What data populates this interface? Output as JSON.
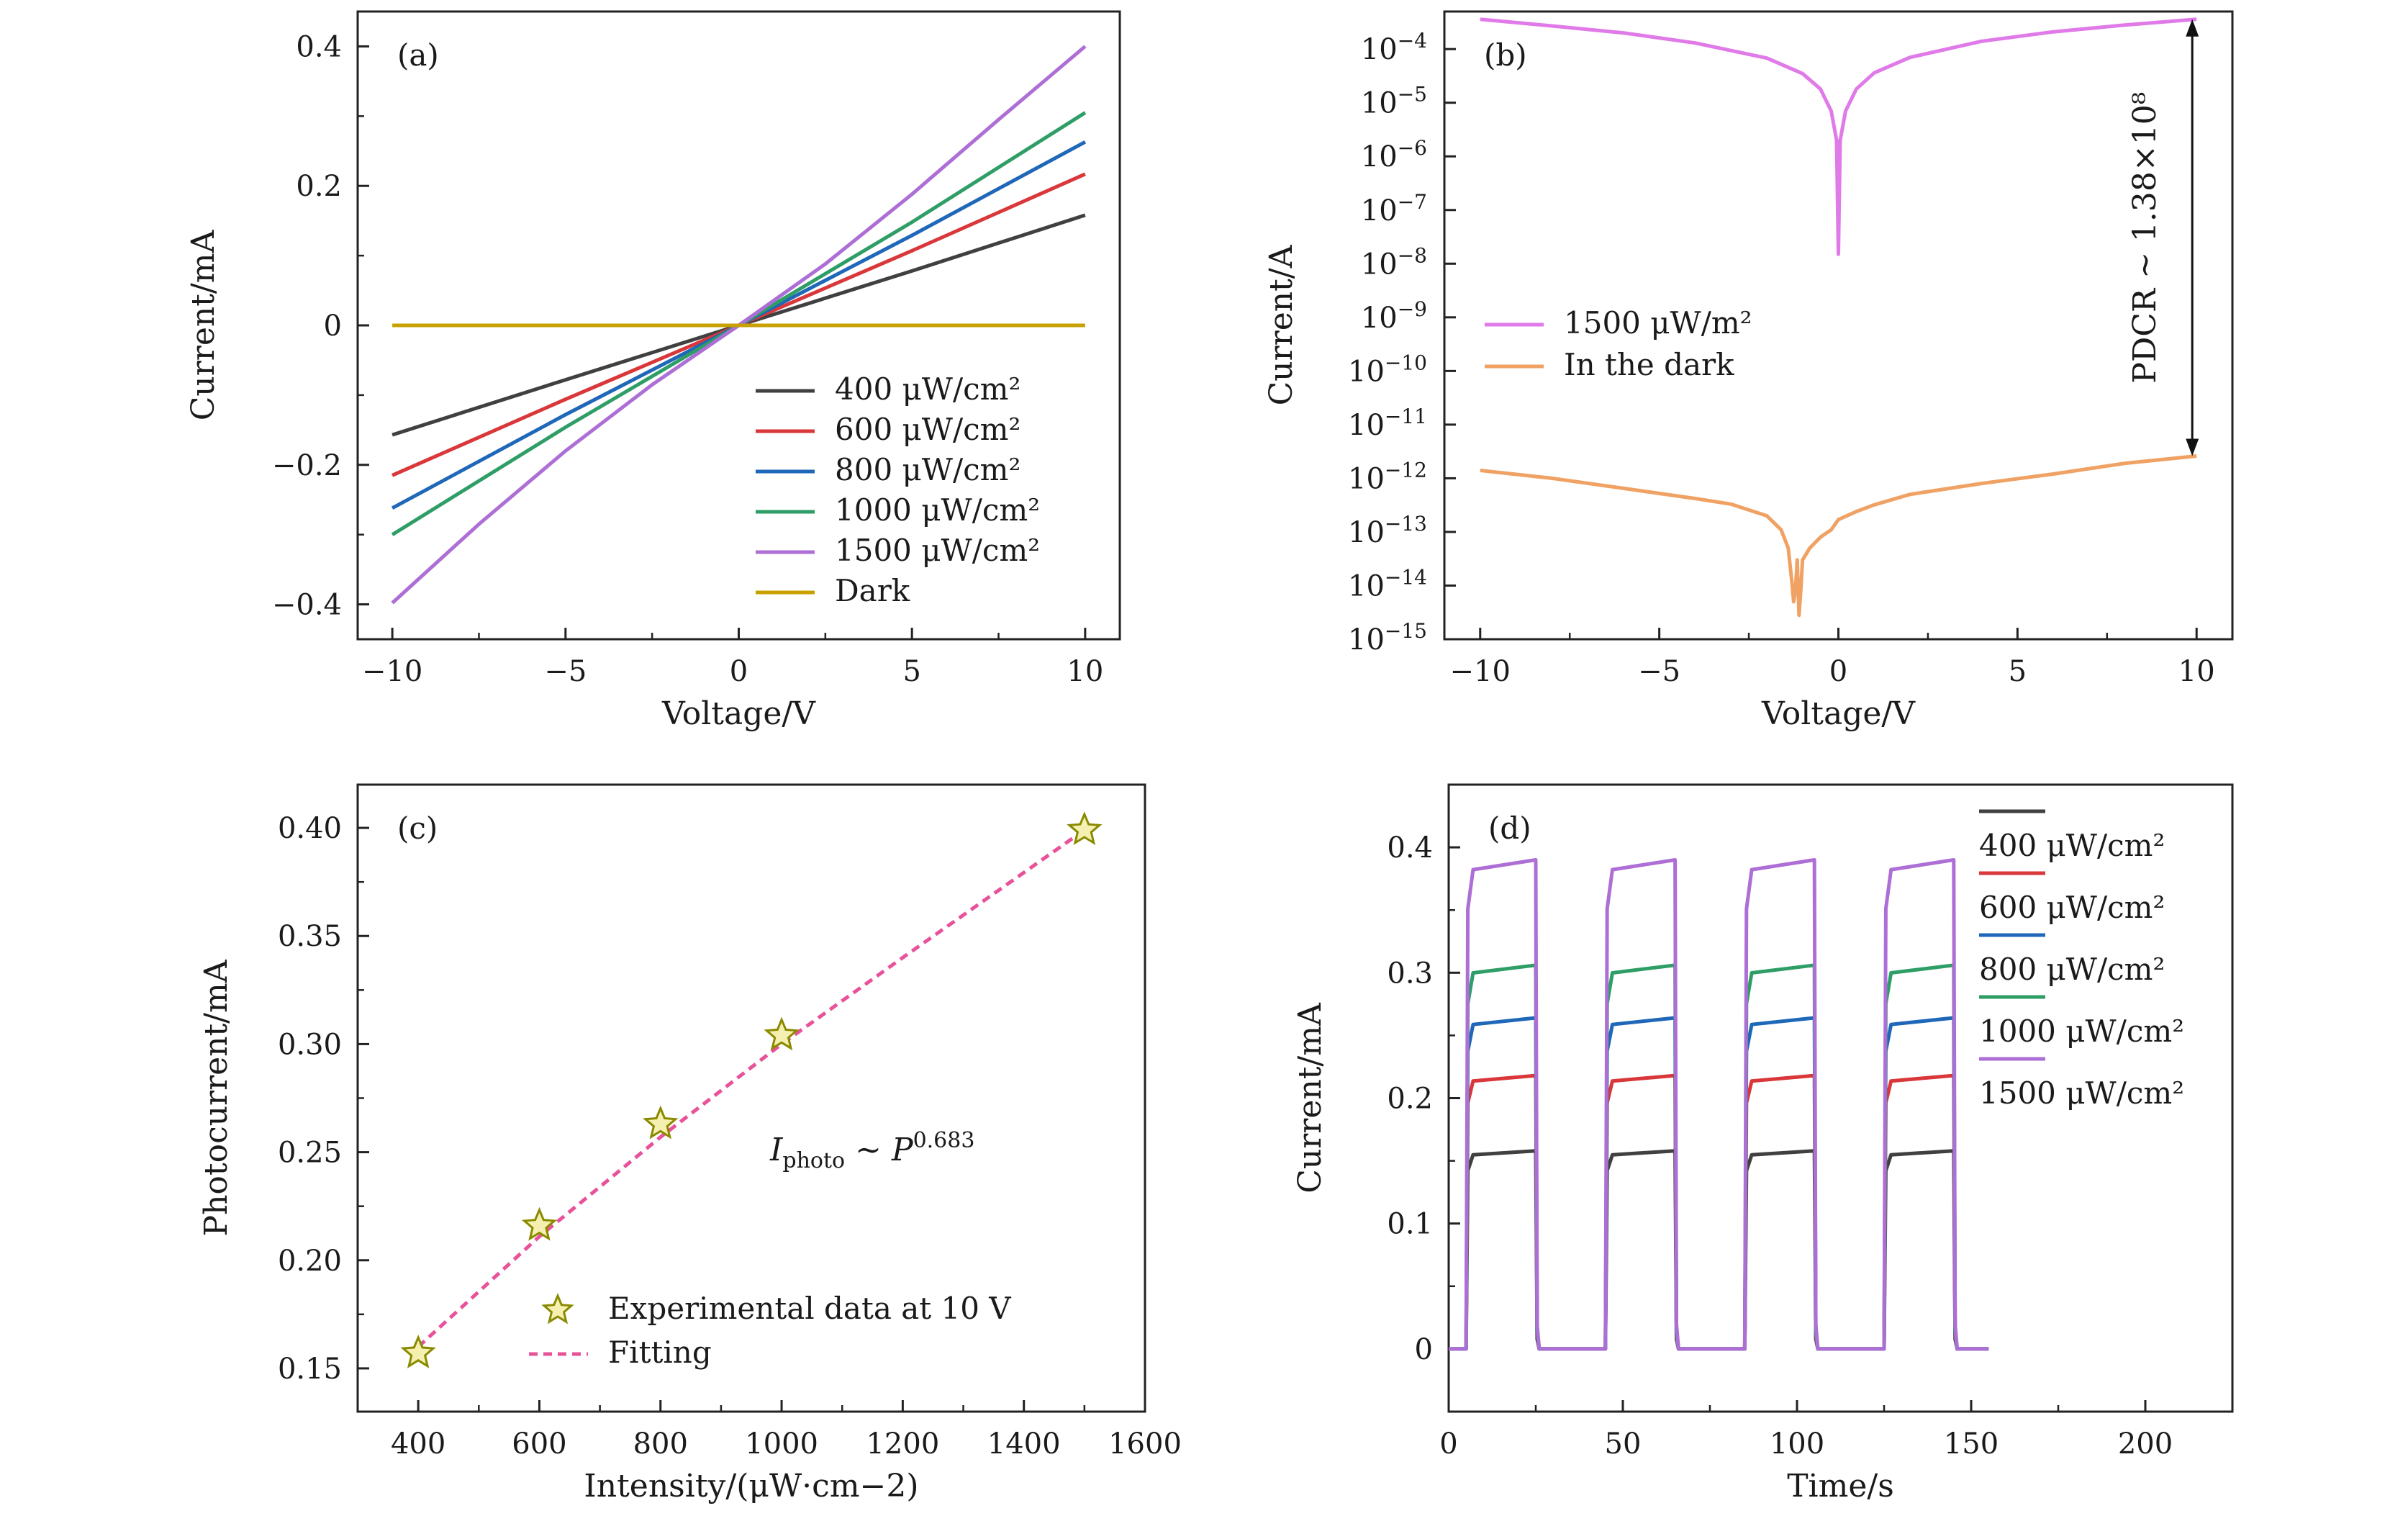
{
  "chart_data": [
    {
      "panel": "(a)",
      "type": "line",
      "xlabel": "Voltage/V",
      "ylabel": "Current/mA",
      "xlim": [
        -11,
        11
      ],
      "ylim": [
        -0.45,
        0.45
      ],
      "xticks": [
        -10,
        -5,
        0,
        5,
        10
      ],
      "xtick_labels": [
        "−10",
        "−5",
        "0",
        "5",
        "10"
      ],
      "yticks": [
        -0.4,
        -0.2,
        0,
        0.2,
        0.4
      ],
      "ytick_labels": [
        "−0.4",
        "−0.2",
        "0",
        "0.2",
        "0.4"
      ],
      "grid": false,
      "legend_position": "bottom-right",
      "series": [
        {
          "name": "400 μW/cm²",
          "color": "#404040",
          "x": [
            -10,
            -5,
            0,
            5,
            10
          ],
          "values": [
            -0.157,
            -0.078,
            0,
            0.078,
            0.158
          ]
        },
        {
          "name": "600 μW/cm²",
          "color": "#d9373a",
          "x": [
            -10,
            -5,
            0,
            5,
            10
          ],
          "values": [
            -0.215,
            -0.106,
            0,
            0.107,
            0.217
          ]
        },
        {
          "name": "800 μW/cm²",
          "color": "#1f67b8",
          "x": [
            -10,
            -5,
            0,
            5,
            10
          ],
          "values": [
            -0.262,
            -0.128,
            0,
            0.129,
            0.263
          ]
        },
        {
          "name": "1000 μW/cm²",
          "color": "#2e9e66",
          "x": [
            -10,
            -5,
            0,
            5,
            10
          ],
          "values": [
            -0.3,
            -0.146,
            0,
            0.148,
            0.305
          ]
        },
        {
          "name": "1500 μW/cm²",
          "color": "#ad6fd6",
          "x": [
            -10,
            -7.5,
            -5,
            -2.5,
            0,
            2.5,
            5,
            7.5,
            10
          ],
          "values": [
            -0.398,
            -0.285,
            -0.18,
            -0.085,
            0,
            0.088,
            0.188,
            0.295,
            0.4
          ]
        },
        {
          "name": "Dark",
          "color": "#c8a000",
          "x": [
            -10,
            0,
            10
          ],
          "values": [
            0,
            0,
            0
          ]
        }
      ]
    },
    {
      "panel": "(b)",
      "type": "line",
      "xlabel": "Voltage/V",
      "ylabel": "Current/A",
      "xlim": [
        -11,
        11
      ],
      "ylim_log10": [
        -15,
        -3.3
      ],
      "yscale": "log",
      "xticks": [
        -10,
        -5,
        0,
        5,
        10
      ],
      "xtick_labels": [
        "−10",
        "−5",
        "0",
        "5",
        "10"
      ],
      "ytick_exponents": [
        -15,
        -14,
        -13,
        -12,
        -11,
        -10,
        -9,
        -8,
        -7,
        -6,
        -5,
        -4
      ],
      "ytick_labels": [
        "10−15",
        "10−14",
        "10−13",
        "10−12",
        "10−11",
        "10−10",
        "10−9",
        "10−8",
        "10−7",
        "10−6",
        "10−5",
        "10−4"
      ],
      "grid": false,
      "legend_position": "middle-left",
      "annotation": "PDCR ~ 1.38×10⁸",
      "series": [
        {
          "name": "1500 μW/m²",
          "color": "#e07ae8",
          "x": [
            -10,
            -8,
            -6,
            -4,
            -2,
            -1,
            -0.5,
            -0.2,
            -0.05,
            0,
            0.05,
            0.2,
            0.5,
            1,
            2,
            4,
            6,
            8,
            10
          ],
          "values": [
            0.00036,
            0.00027,
            0.0002,
            0.00013,
            6.8e-05,
            3.5e-05,
            1.8e-05,
            7e-06,
            2e-06,
            1.5e-08,
            2e-06,
            7e-06,
            1.8e-05,
            3.6e-05,
            7e-05,
            0.00014,
            0.00021,
            0.00028,
            0.00036
          ]
        },
        {
          "name": "In the dark",
          "color": "#f0a264",
          "x": [
            -10,
            -8,
            -6,
            -4,
            -3,
            -2,
            -1.6,
            -1.4,
            -1.3,
            -1.25,
            -1.2,
            -1.15,
            -1.1,
            -1.05,
            -1.0,
            -0.8,
            -0.5,
            -0.2,
            0,
            0.5,
            1,
            2,
            4,
            6,
            8,
            10
          ],
          "values": [
            1.4e-12,
            1e-12,
            6.5e-13,
            4.2e-13,
            3.3e-13,
            2e-13,
            1.1e-13,
            5e-14,
            1.2e-14,
            5e-15,
            8e-15,
            3e-14,
            2.8e-15,
            8e-15,
            3e-14,
            5e-14,
            8e-14,
            1.1e-13,
            1.7e-13,
            2.4e-13,
            3.2e-13,
            5e-13,
            8e-13,
            1.2e-12,
            1.9e-12,
            2.6e-12
          ]
        }
      ]
    },
    {
      "panel": "(c)",
      "type": "scatter",
      "xlabel": "Intensity/(μW·cm−2)",
      "ylabel": "Photocurrent/mA",
      "xlim": [
        300,
        1600
      ],
      "ylim": [
        0.13,
        0.42
      ],
      "xticks": [
        400,
        600,
        800,
        1000,
        1200,
        1400,
        1600
      ],
      "xtick_labels": [
        "400",
        "600",
        "800",
        "1000",
        "1200",
        "1400",
        "1600"
      ],
      "yticks": [
        0.15,
        0.2,
        0.25,
        0.3,
        0.35,
        0.4
      ],
      "ytick_labels": [
        "0.15",
        "0.20",
        "0.25",
        "0.30",
        "0.35",
        "0.40"
      ],
      "grid": false,
      "legend_position": "bottom-right",
      "annotation": "Iphoto ~ P0.683",
      "series": [
        {
          "name": "Experimental data at 10 V",
          "color": "#8a8a00",
          "x": [
            400,
            600,
            800,
            1000,
            1500
          ],
          "values": [
            0.157,
            0.216,
            0.263,
            0.304,
            0.399
          ]
        },
        {
          "name": "Fitting",
          "color": "#e8529a",
          "x": [
            400,
            600,
            800,
            1000,
            1200,
            1500
          ],
          "values": [
            0.16,
            0.211,
            0.257,
            0.3,
            0.34,
            0.399
          ]
        }
      ]
    },
    {
      "panel": "(d)",
      "type": "line",
      "xlabel": "Time/s",
      "ylabel": "Current/mA",
      "xlim": [
        0,
        225
      ],
      "ylim": [
        -0.05,
        0.45
      ],
      "xticks": [
        0,
        50,
        100,
        150,
        200
      ],
      "xtick_labels": [
        "0",
        "50",
        "100",
        "150",
        "200"
      ],
      "yticks": [
        0,
        0.1,
        0.2,
        0.3,
        0.4
      ],
      "ytick_labels": [
        "0",
        "0.1",
        "0.2",
        "0.3",
        "0.4"
      ],
      "grid": false,
      "legend_position": "top-right",
      "on_intervals": [
        [
          5,
          25
        ],
        [
          45,
          65
        ],
        [
          85,
          105
        ],
        [
          125,
          145
        ]
      ],
      "time_end": 155,
      "series": [
        {
          "name": "400 μW/cm²",
          "color": "#404040",
          "level": 0.158
        },
        {
          "name": "600 μW/cm²",
          "color": "#d9373a",
          "level": 0.218
        },
        {
          "name": "800 μW/cm²",
          "color": "#1f67b8",
          "level": 0.264
        },
        {
          "name": "1000 μW/cm²",
          "color": "#2e9e66",
          "level": 0.306
        },
        {
          "name": "1500 μW/cm²",
          "color": "#ad6fd6",
          "level": 0.39
        }
      ]
    }
  ]
}
